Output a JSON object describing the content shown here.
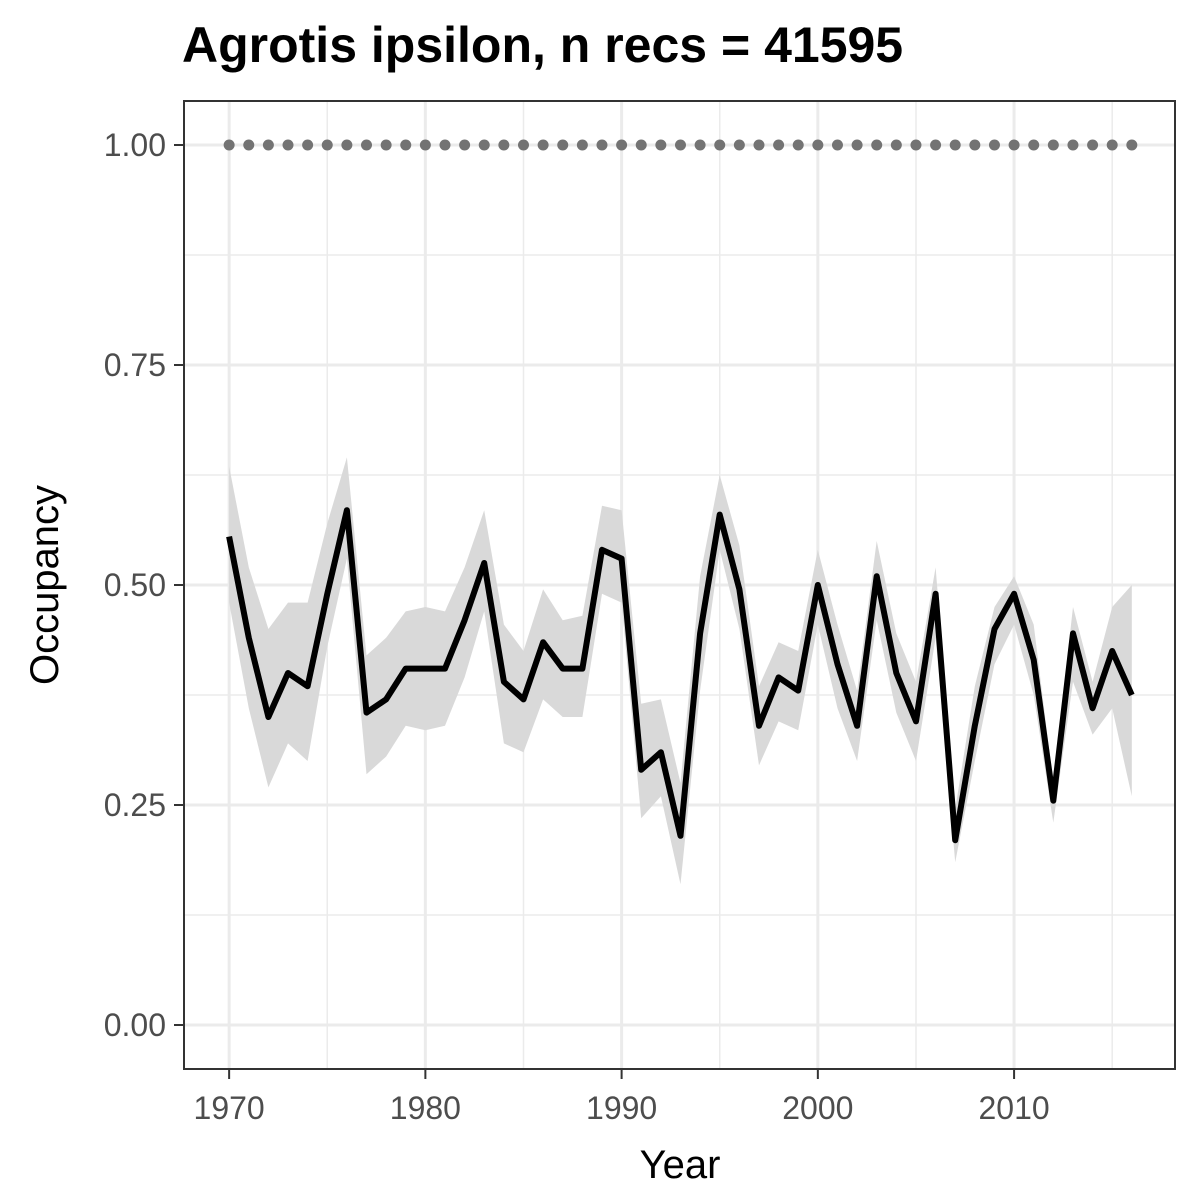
{
  "chart_data": {
    "type": "line",
    "title": "Agrotis ipsilon, n recs = 41595",
    "xlabel": "Year",
    "ylabel": "Occupancy",
    "xlim": [
      1967.7,
      2018.2
    ],
    "ylim": [
      -0.05,
      1.05
    ],
    "x_ticks": [
      1970,
      1980,
      1990,
      2000,
      2010
    ],
    "x_tick_labels": [
      "1970",
      "1980",
      "1990",
      "2000",
      "2010"
    ],
    "y_ticks": [
      0,
      0.25,
      0.5,
      0.75,
      1
    ],
    "y_tick_labels": [
      "0.00",
      "0.25",
      "0.50",
      "0.75",
      "1.00"
    ],
    "grid": true,
    "colors": {
      "line": "#000000",
      "ribbon": "#d9d9d9",
      "points": "#737373",
      "grid": "#ebebeb",
      "panel_border": "#333333"
    },
    "series": [
      {
        "x": [
          1970,
          1971,
          1972,
          1973,
          1974,
          1975,
          1976,
          1977,
          1978,
          1979,
          1980,
          1981,
          1982,
          1983,
          1984,
          1985,
          1986,
          1987,
          1988,
          1989,
          1990,
          1991,
          1992,
          1993,
          1994,
          1995,
          1996,
          1997,
          1998,
          1999,
          2000,
          2001,
          2002,
          2003,
          2004,
          2005,
          2006,
          2007,
          2008,
          2009,
          2010,
          2011,
          2012,
          2013,
          2014,
          2015,
          2016
        ],
        "y": [
          0.555,
          0.44,
          0.35,
          0.4,
          0.385,
          0.49,
          0.585,
          0.355,
          0.37,
          0.405,
          0.405,
          0.405,
          0.46,
          0.525,
          0.39,
          0.37,
          0.435,
          0.405,
          0.405,
          0.54,
          0.53,
          0.29,
          0.31,
          0.215,
          0.445,
          0.58,
          0.495,
          0.34,
          0.395,
          0.38,
          0.5,
          0.41,
          0.34,
          0.51,
          0.4,
          0.345,
          0.49,
          0.21,
          0.34,
          0.45,
          0.49,
          0.415,
          0.255,
          0.445,
          0.36,
          0.425,
          0.375
        ],
        "lower": [
          0.48,
          0.36,
          0.27,
          0.32,
          0.3,
          0.43,
          0.53,
          0.285,
          0.305,
          0.34,
          0.335,
          0.34,
          0.395,
          0.47,
          0.32,
          0.31,
          0.37,
          0.35,
          0.35,
          0.49,
          0.48,
          0.235,
          0.26,
          0.16,
          0.38,
          0.54,
          0.45,
          0.295,
          0.345,
          0.335,
          0.455,
          0.36,
          0.3,
          0.46,
          0.355,
          0.3,
          0.44,
          0.185,
          0.3,
          0.41,
          0.455,
          0.375,
          0.23,
          0.39,
          0.33,
          0.36,
          0.26
        ],
        "upper": [
          0.635,
          0.52,
          0.45,
          0.48,
          0.48,
          0.57,
          0.645,
          0.42,
          0.44,
          0.47,
          0.475,
          0.47,
          0.52,
          0.585,
          0.455,
          0.425,
          0.495,
          0.46,
          0.465,
          0.59,
          0.585,
          0.365,
          0.37,
          0.275,
          0.51,
          0.625,
          0.545,
          0.385,
          0.435,
          0.425,
          0.54,
          0.455,
          0.38,
          0.55,
          0.445,
          0.39,
          0.52,
          0.245,
          0.385,
          0.475,
          0.51,
          0.455,
          0.275,
          0.475,
          0.39,
          0.475,
          0.5
        ]
      },
      {
        "x": [
          1970,
          1971,
          1972,
          1973,
          1974,
          1975,
          1976,
          1977,
          1978,
          1979,
          1980,
          1981,
          1982,
          1983,
          1984,
          1985,
          1986,
          1987,
          1988,
          1989,
          1990,
          1991,
          1992,
          1993,
          1994,
          1995,
          1996,
          1997,
          1998,
          1999,
          2000,
          2001,
          2002,
          2003,
          2004,
          2005,
          2006,
          2007,
          2008,
          2009,
          2010,
          2011,
          2012,
          2013,
          2014,
          2015,
          2016
        ],
        "y": [
          1,
          1,
          1,
          1,
          1,
          1,
          1,
          1,
          1,
          1,
          1,
          1,
          1,
          1,
          1,
          1,
          1,
          1,
          1,
          1,
          1,
          1,
          1,
          1,
          1,
          1,
          1,
          1,
          1,
          1,
          1,
          1,
          1,
          1,
          1,
          1,
          1,
          1,
          1,
          1,
          1,
          1,
          1,
          1,
          1,
          1,
          1
        ]
      }
    ]
  }
}
